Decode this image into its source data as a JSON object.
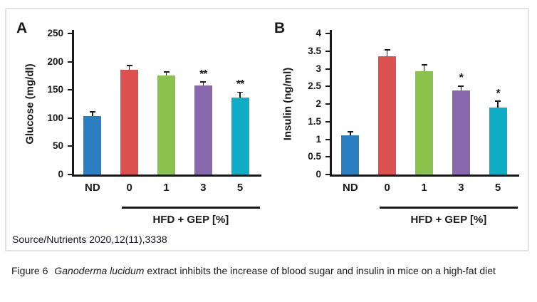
{
  "figure_box": {
    "source_text": "Source/Nutrients 2020,12(11),3338"
  },
  "caption": {
    "prefix": "Figure 6",
    "italic": "Ganoderma lucidum",
    "rest": "extract inhibits the increase of blood sugar and insulin in mice on a high-fat diet"
  },
  "colors": {
    "bar_blue": "#2a7fc0",
    "bar_red": "#dd5050",
    "bar_green": "#8bc14d",
    "bar_purple": "#8868ac",
    "bar_cyan": "#0eadc5",
    "axis": "#1a1a1a",
    "box_border": "#e3e3e3"
  },
  "chart_data": [
    {
      "type": "bar",
      "panel_label": "A",
      "title": "",
      "xlabel": "",
      "ylabel": "Glucose (mg/dl)",
      "categories": [
        "ND",
        "0",
        "1",
        "3",
        "5"
      ],
      "values": [
        104,
        186,
        176,
        158,
        136
      ],
      "errors": [
        6,
        6,
        5,
        5,
        9
      ],
      "significance": [
        "",
        "",
        "",
        "**",
        "**"
      ],
      "ylim": [
        0,
        250
      ],
      "ytick_labels": [
        "0",
        "50",
        "100",
        "150",
        "200",
        "250"
      ],
      "bar_color_keys": [
        "bar_blue",
        "bar_red",
        "bar_green",
        "bar_purple",
        "bar_cyan"
      ],
      "group_label": "HFD + GEP [%]",
      "group_start_index": 1,
      "grid": false,
      "legend": "none"
    },
    {
      "type": "bar",
      "panel_label": "B",
      "title": "",
      "xlabel": "",
      "ylabel": "Insulin (ng/ml)",
      "categories": [
        "ND",
        "0",
        "1",
        "3",
        "5"
      ],
      "values": [
        1.12,
        3.35,
        2.92,
        2.38,
        1.9
      ],
      "errors": [
        0.08,
        0.17,
        0.18,
        0.12,
        0.17
      ],
      "significance": [
        "",
        "",
        "",
        "*",
        "*"
      ],
      "ylim": [
        0,
        4
      ],
      "ytick_labels": [
        "0",
        "0.5",
        "1",
        "1.5",
        "2",
        "2.5",
        "3",
        "3.5",
        "4"
      ],
      "bar_color_keys": [
        "bar_blue",
        "bar_red",
        "bar_green",
        "bar_purple",
        "bar_cyan"
      ],
      "group_label": "HFD + GEP [%]",
      "group_start_index": 1,
      "grid": false,
      "legend": "none"
    }
  ]
}
